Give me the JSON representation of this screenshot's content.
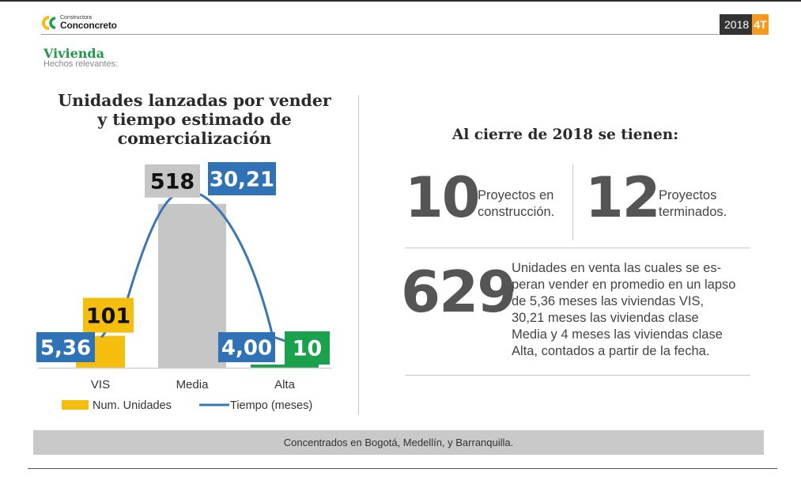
{
  "header": {
    "logo_small": "Constructora",
    "logo_name": "Conconcreto",
    "year": "2018",
    "quarter": "4T"
  },
  "section": {
    "title": "Vivienda",
    "subtitle": "Hechos relevantes:"
  },
  "chart_title_lines": [
    "Unidades lanzadas por vender",
    "y tiempo estimado de",
    "comercialización"
  ],
  "chart_data": {
    "type": "bar",
    "categories": [
      "VIS",
      "Media",
      "Alta"
    ],
    "series": [
      {
        "name": "Num. Unidades",
        "kind": "bar",
        "values": [
          101,
          518,
          10
        ],
        "labels": [
          "101",
          "518",
          "10"
        ]
      },
      {
        "name": "Tiempo (meses)",
        "kind": "line",
        "values": [
          5.36,
          30.21,
          4.0
        ],
        "labels": [
          "5,36",
          "30,21",
          "4,00"
        ]
      }
    ],
    "colors": {
      "VIS": "#f5bd0d",
      "Media": "#c6c6c6",
      "Alta": "#1aa14b",
      "line": "#3a76b1",
      "time_label": "#2f72b5"
    }
  },
  "right": {
    "heading": "Al cierre de 2018 se tienen:",
    "stat1_value": "10",
    "stat1_desc": [
      "Proyectos en",
      "construcción."
    ],
    "stat2_value": "12",
    "stat2_desc": [
      "Proyectos",
      "terminados."
    ],
    "stat3_value": "629",
    "stat3_desc": [
      "Unidades en venta las cuales se es-",
      "peran vender en promedio en un lapso",
      "de 5,36 meses las viviendas VIS,",
      "30,21 meses las viviendas clase",
      "Media y 4 meses las viviendas clase",
      "Alta, contados a partir de la fecha."
    ]
  },
  "footer": "Concentrados en Bogotá, Medellín, y Barranquilla."
}
